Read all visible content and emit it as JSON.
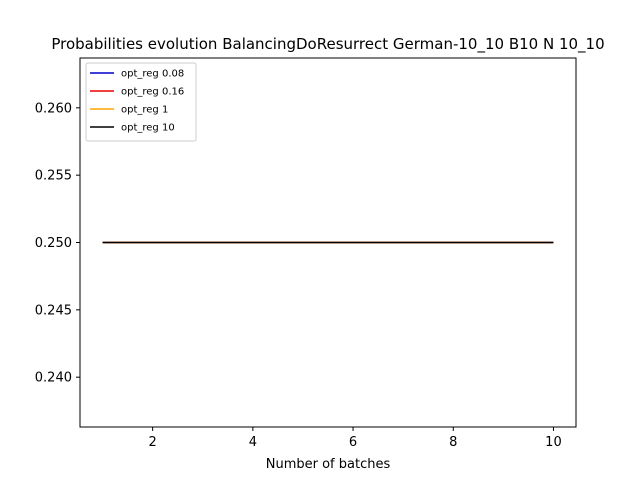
{
  "chart_data": {
    "type": "line",
    "title": "Probabilities evolution BalancingDoResurrect German-10_10 B10 N 10_10",
    "xlabel": "Number of batches",
    "ylabel": "",
    "xlim": [
      0.55,
      10.45
    ],
    "ylim": [
      0.2363,
      0.2637
    ],
    "xticks": [
      2,
      4,
      6,
      8,
      10
    ],
    "yticks": [
      0.24,
      0.245,
      0.25,
      0.255,
      0.26
    ],
    "ytick_labels": [
      "0.240",
      "0.245",
      "0.250",
      "0.255",
      "0.260"
    ],
    "grid": false,
    "legend_position": "top-left",
    "x": [
      1,
      2,
      3,
      4,
      5,
      6,
      7,
      8,
      9,
      10
    ],
    "series": [
      {
        "name": "opt_reg 0.08",
        "color": "#0000cc",
        "values": [
          0.25,
          0.25,
          0.25,
          0.25,
          0.25,
          0.25,
          0.25,
          0.25,
          0.25,
          0.25
        ]
      },
      {
        "name": "opt_reg 0.16",
        "color": "#ee0000",
        "values": [
          0.25,
          0.25,
          0.25,
          0.25,
          0.25,
          0.25,
          0.25,
          0.25,
          0.25,
          0.25
        ]
      },
      {
        "name": "opt_reg 1",
        "color": "#ffa500",
        "values": [
          0.25,
          0.25,
          0.25,
          0.25,
          0.25,
          0.25,
          0.25,
          0.25,
          0.25,
          0.25
        ]
      },
      {
        "name": "opt_reg 10",
        "color": "#000000",
        "values": [
          0.25,
          0.25,
          0.25,
          0.25,
          0.25,
          0.25,
          0.25,
          0.25,
          0.25,
          0.25
        ]
      }
    ]
  }
}
